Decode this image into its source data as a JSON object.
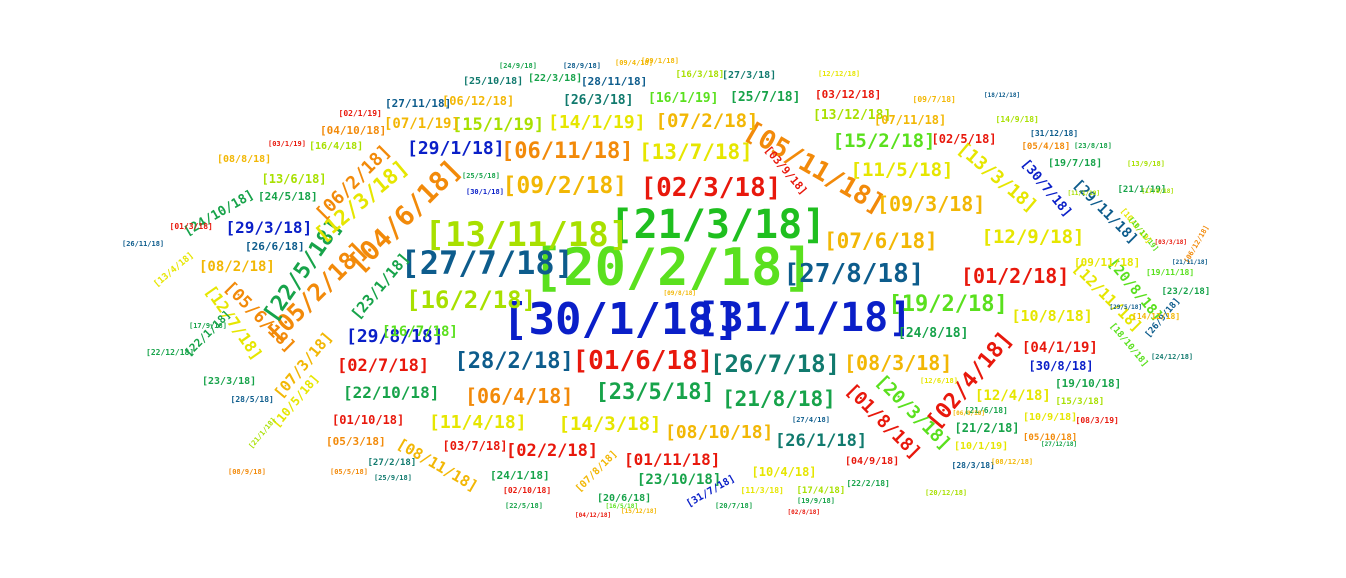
{
  "palette": {
    "red": "#e8180c",
    "orange": "#f28a0a",
    "amber": "#f2b705",
    "yellow": "#e6e600",
    "lime": "#a8e000",
    "lgreen": "#5ae01e",
    "green": "#1fbf1f",
    "dgreen": "#17a34a",
    "teal": "#117a6e",
    "navy": "#0d5c8c",
    "blue": "#0a1fc8"
  },
  "words": [
    {
      "text": "[20/2/18]",
      "color": "lgreen"
    },
    {
      "text": "[30/1/18]",
      "color": "blue"
    },
    {
      "text": "[31/1/18]",
      "color": "blue"
    },
    {
      "text": "[21/3/18]",
      "color": "green"
    },
    {
      "text": "[13/11/18]",
      "color": "lime"
    },
    {
      "text": "[27/7/18]",
      "color": "navy"
    },
    {
      "text": "[27/8/18]",
      "color": "navy"
    },
    {
      "text": "[02/3/18]",
      "color": "red"
    },
    {
      "text": "[05/11/18]",
      "color": "orange"
    },
    {
      "text": "[04/6/18]",
      "color": "orange"
    },
    {
      "text": "[05/2/18]",
      "color": "orange"
    },
    {
      "text": "[22/5/18]",
      "color": "dgreen"
    },
    {
      "text": "[12/3/18]",
      "color": "yellow"
    },
    {
      "text": "[06/2/18]",
      "color": "orange"
    },
    {
      "text": "[16/2/18]",
      "color": "lime"
    },
    {
      "text": "[01/6/18]",
      "color": "red"
    },
    {
      "text": "[26/7/18]",
      "color": "teal"
    },
    {
      "text": "[28/2/18]",
      "color": "navy"
    },
    {
      "text": "[19/2/18]",
      "color": "lgreen"
    },
    {
      "text": "[01/2/18]",
      "color": "red"
    },
    {
      "text": "[07/6/18]",
      "color": "amber"
    },
    {
      "text": "[09/2/18]",
      "color": "amber"
    },
    {
      "text": "[06/11/18]",
      "color": "orange"
    },
    {
      "text": "[13/7/18]",
      "color": "yellow"
    },
    {
      "text": "[09/3/18]",
      "color": "amber"
    },
    {
      "text": "[11/5/18]",
      "color": "yellow"
    },
    {
      "text": "[15/2/18]",
      "color": "lgreen"
    },
    {
      "text": "[13/3/18]",
      "color": "yellow"
    },
    {
      "text": "[12/9/18]",
      "color": "yellow"
    },
    {
      "text": "[29/1/18]",
      "color": "blue"
    },
    {
      "text": "[07/2/18]",
      "color": "amber"
    },
    {
      "text": "[14/1/19]",
      "color": "yellow"
    },
    {
      "text": "[15/1/19]",
      "color": "lime"
    },
    {
      "text": "[07/1/19]",
      "color": "amber"
    },
    {
      "text": "[23/5/18]",
      "color": "dgreen"
    },
    {
      "text": "[06/4/18]",
      "color": "orange"
    },
    {
      "text": "[21/8/18]",
      "color": "dgreen"
    },
    {
      "text": "[08/3/18]",
      "color": "amber"
    },
    {
      "text": "[02/4/18]",
      "color": "red"
    },
    {
      "text": "[01/8/18]",
      "color": "red"
    },
    {
      "text": "[20/3/18]",
      "color": "lgreen"
    },
    {
      "text": "[14/3/18]",
      "color": "yellow"
    },
    {
      "text": "[11/4/18]",
      "color": "yellow"
    },
    {
      "text": "[08/10/18]",
      "color": "amber"
    },
    {
      "text": "[26/1/18]",
      "color": "teal"
    },
    {
      "text": "[02/2/18]",
      "color": "red"
    },
    {
      "text": "[01/11/18]",
      "color": "red"
    },
    {
      "text": "[23/10/18]",
      "color": "dgreen"
    },
    {
      "text": "[22/10/18]",
      "color": "dgreen"
    },
    {
      "text": "[02/7/18]",
      "color": "red"
    },
    {
      "text": "[29/8/18]",
      "color": "blue"
    },
    {
      "text": "[16/7/18]",
      "color": "lgreen"
    },
    {
      "text": "[23/1/18]",
      "color": "dgreen"
    },
    {
      "text": "[05/6/18]",
      "color": "orange"
    },
    {
      "text": "[12/7/18]",
      "color": "yellow"
    },
    {
      "text": "[07/3/18]",
      "color": "amber"
    },
    {
      "text": "[10/5/18]",
      "color": "yellow"
    },
    {
      "text": "[08/11/18]",
      "color": "amber"
    },
    {
      "text": "[29/3/18]",
      "color": "blue"
    },
    {
      "text": "[08/2/18]",
      "color": "amber"
    },
    {
      "text": "[24/10/18]",
      "color": "dgreen"
    },
    {
      "text": "[13/6/18]",
      "color": "lime"
    },
    {
      "text": "[24/5/18]",
      "color": "dgreen"
    },
    {
      "text": "[26/6/18]",
      "color": "navy"
    },
    {
      "text": "[04/10/18]",
      "color": "orange"
    },
    {
      "text": "[16/4/18]",
      "color": "lime"
    },
    {
      "text": "[08/8/18]",
      "color": "amber"
    },
    {
      "text": "[27/11/18]",
      "color": "navy"
    },
    {
      "text": "[06/12/18]",
      "color": "amber"
    },
    {
      "text": "[25/10/18]",
      "color": "teal"
    },
    {
      "text": "[22/3/18]",
      "color": "dgreen"
    },
    {
      "text": "[28/11/18]",
      "color": "navy"
    },
    {
      "text": "[26/3/18]",
      "color": "teal"
    },
    {
      "text": "[16/1/19]",
      "color": "lgreen"
    },
    {
      "text": "[25/7/18]",
      "color": "dgreen"
    },
    {
      "text": "[16/3/18]",
      "color": "lime"
    },
    {
      "text": "[27/3/18]",
      "color": "teal"
    },
    {
      "text": "[03/12/18]",
      "color": "red"
    },
    {
      "text": "[13/12/18]",
      "color": "lime"
    },
    {
      "text": "[07/11/18]",
      "color": "amber"
    },
    {
      "text": "[02/5/18]",
      "color": "red"
    },
    {
      "text": "[03/9/18]",
      "color": "red"
    },
    {
      "text": "[30/7/18]",
      "color": "blue"
    },
    {
      "text": "[29/11/18]",
      "color": "navy"
    },
    {
      "text": "[19/7/18]",
      "color": "dgreen"
    },
    {
      "text": "[21/1/19]",
      "color": "dgreen"
    },
    {
      "text": "[10/1/19]",
      "color": "yellow"
    },
    {
      "text": "[05/4/18]",
      "color": "orange"
    },
    {
      "text": "[12/11/18]",
      "color": "yellow"
    },
    {
      "text": "[20/8/18]",
      "color": "lgreen"
    },
    {
      "text": "[09/11/18]",
      "color": "yellow"
    },
    {
      "text": "[10/8/18]",
      "color": "yellow"
    },
    {
      "text": "[24/8/18]",
      "color": "dgreen"
    },
    {
      "text": "[04/1/19]",
      "color": "red"
    },
    {
      "text": "[30/8/18]",
      "color": "blue"
    },
    {
      "text": "[19/10/18]",
      "color": "dgreen"
    },
    {
      "text": "[12/4/18]",
      "color": "yellow"
    },
    {
      "text": "[15/3/18]",
      "color": "lime"
    },
    {
      "text": "[21/2/18]",
      "color": "dgreen"
    },
    {
      "text": "[10/9/18]",
      "color": "yellow"
    },
    {
      "text": "[10/1/19]",
      "color": "yellow"
    },
    {
      "text": "[05/10/18]",
      "color": "orange"
    },
    {
      "text": "[28/3/18]",
      "color": "navy"
    },
    {
      "text": "[10/4/18]",
      "color": "yellow"
    },
    {
      "text": "[04/9/18]",
      "color": "red"
    },
    {
      "text": "[22/2/18]",
      "color": "dgreen"
    },
    {
      "text": "[31/7/18]",
      "color": "blue"
    },
    {
      "text": "[20/7/18]",
      "color": "dgreen"
    },
    {
      "text": "[11/3/18]",
      "color": "yellow"
    },
    {
      "text": "[17/4/18]",
      "color": "lime"
    },
    {
      "text": "[24/1/18]",
      "color": "dgreen"
    },
    {
      "text": "[20/6/18]",
      "color": "dgreen"
    },
    {
      "text": "[07/8/18]",
      "color": "amber"
    },
    {
      "text": "[03/7/18]",
      "color": "red"
    },
    {
      "text": "[05/3/18]",
      "color": "orange"
    },
    {
      "text": "[01/10/18]",
      "color": "red"
    },
    {
      "text": "[27/2/18]",
      "color": "teal"
    },
    {
      "text": "[02/10/18]",
      "color": "red"
    },
    {
      "text": "[23/3/18]",
      "color": "dgreen"
    },
    {
      "text": "[22/1/18]",
      "color": "dgreen"
    },
    {
      "text": "[13/4/18]",
      "color": "yellow"
    },
    {
      "text": "[02/1/19]",
      "color": "red"
    },
    {
      "text": "[03/1/19]",
      "color": "red"
    },
    {
      "text": "[01/3/18]",
      "color": "red"
    },
    {
      "text": "[23/8/18]",
      "color": "dgreen"
    },
    {
      "text": "[31/12/18]",
      "color": "navy"
    },
    {
      "text": "[21/6/18]",
      "color": "dgreen"
    },
    {
      "text": "[26/9/18]",
      "color": "navy"
    },
    {
      "text": "[23/2/18]",
      "color": "dgreen"
    },
    {
      "text": "[18/10/18]",
      "color": "lgreen"
    },
    {
      "text": "[10/11/19]",
      "color": "lgreen"
    },
    {
      "text": "[27/4/18]",
      "color": "navy"
    },
    {
      "text": "[09/7/18]",
      "color": "amber"
    },
    {
      "text": "[14/9/18]",
      "color": "lime"
    },
    {
      "text": "[12/12/18]",
      "color": "yellow"
    },
    {
      "text": "[09/1/18]",
      "color": "amber"
    },
    {
      "text": "[24/9/18]",
      "color": "dgreen"
    },
    {
      "text": "[28/9/18]",
      "color": "navy"
    },
    {
      "text": "[28/5/18]",
      "color": "navy"
    },
    {
      "text": "[09/8/18]",
      "color": "amber"
    },
    {
      "text": "[30/1/18]",
      "color": "blue"
    },
    {
      "text": "[25/5/18]",
      "color": "dgreen"
    },
    {
      "text": "[09/4/18]",
      "color": "amber"
    },
    {
      "text": "[15/12/18]",
      "color": "amber"
    },
    {
      "text": "[17/9/18]",
      "color": "dgreen"
    },
    {
      "text": "[21/1/18]",
      "color": "lime"
    },
    {
      "text": "[13/9/18]",
      "color": "lime"
    },
    {
      "text": "[08/3/19]",
      "color": "red"
    },
    {
      "text": "[24/12/18]",
      "color": "teal"
    },
    {
      "text": "[06/12/18]",
      "color": "orange"
    },
    {
      "text": "[26/11/18]",
      "color": "navy"
    },
    {
      "text": "[22/12/18]",
      "color": "dgreen"
    },
    {
      "text": "[14/12/18]",
      "color": "amber"
    },
    {
      "text": "[08/9/18]",
      "color": "orange"
    },
    {
      "text": "[19/11/18]",
      "color": "lgreen"
    },
    {
      "text": "[05/5/18]",
      "color": "orange"
    },
    {
      "text": "[25/9/18]",
      "color": "teal"
    },
    {
      "text": "[22/5/18]",
      "color": "dgreen"
    },
    {
      "text": "[16/5/18]",
      "color": "lgreen"
    },
    {
      "text": "[18/12/18]",
      "color": "navy"
    },
    {
      "text": "[08/12/18]",
      "color": "amber"
    },
    {
      "text": "[04/12/18]",
      "color": "red"
    },
    {
      "text": "[17/8/18]",
      "color": "lime"
    },
    {
      "text": "[19/9/18]",
      "color": "dgreen"
    },
    {
      "text": "[20/12/18]",
      "color": "lime"
    },
    {
      "text": "[11/1/19]",
      "color": "lime"
    },
    {
      "text": "[29/5/18]",
      "color": "navy"
    },
    {
      "text": "[27/12/18]",
      "color": "dgreen"
    },
    {
      "text": "[03/3/18]",
      "color": "red"
    },
    {
      "text": "[12/6/18]",
      "color": "yellow"
    },
    {
      "text": "[21/11/18]",
      "color": "navy"
    },
    {
      "text": "[06/9/18]",
      "color": "amber"
    },
    {
      "text": "[02/8/18]",
      "color": "red"
    }
  ]
}
